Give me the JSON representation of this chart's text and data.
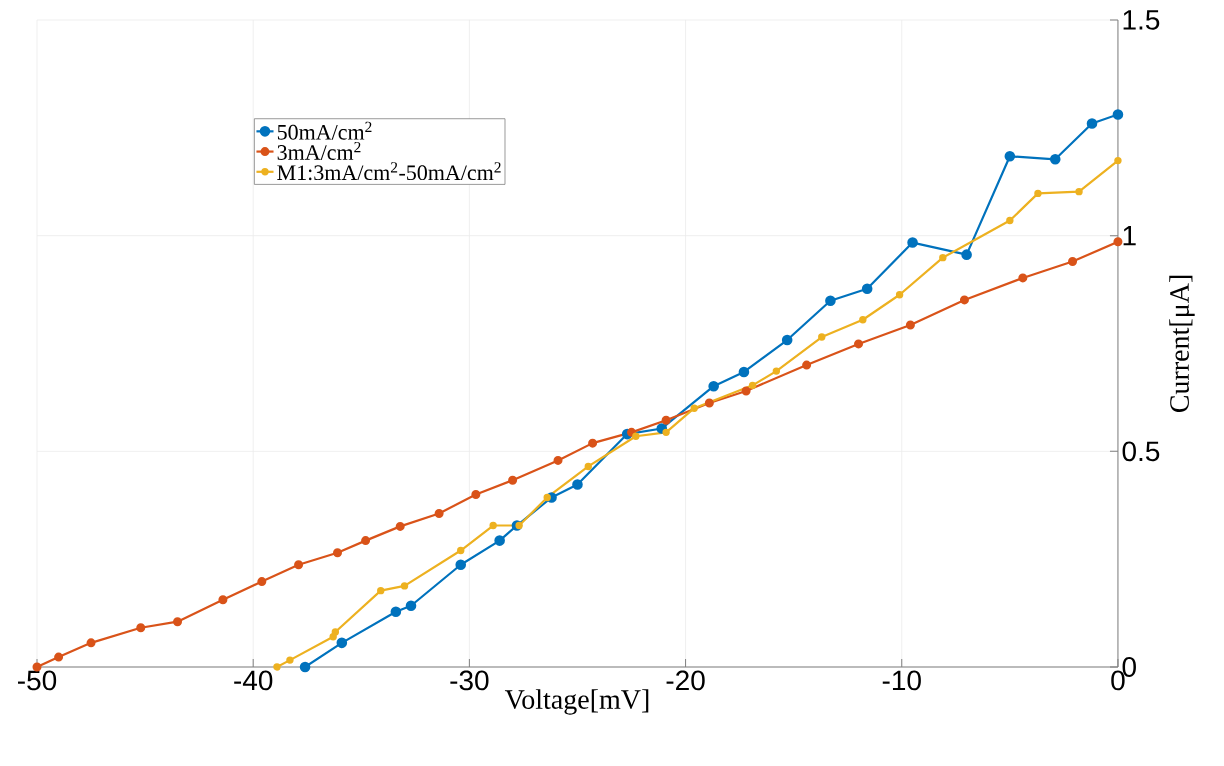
{
  "chart_data": {
    "type": "line",
    "xlabel": "Voltage[mV]",
    "ylabel": "Current[μA]",
    "xlim": [
      -50,
      0
    ],
    "xticks": [
      -50,
      -40,
      -30,
      -20,
      -10,
      0
    ],
    "ylim": [
      0,
      1.5
    ],
    "yticks": [
      0,
      0.5,
      1,
      1.5
    ],
    "grid": true,
    "legend": "top left",
    "marker": "circle",
    "line_style": "solid",
    "series": [
      {
        "name": "50mA/cm$^{2}$",
        "color": "#0072bd",
        "x": [
          -37.6,
          -35.9,
          -33.4,
          -32.7,
          -30.4,
          -28.6,
          -27.8,
          -26.2,
          -25.0,
          -22.7,
          -21.1,
          -18.7,
          -17.3,
          -15.3,
          -13.3,
          -11.6,
          -9.5,
          -7.0,
          -5.0,
          -2.9,
          -1.2,
          0
        ],
        "values": [
          0,
          0.056,
          0.128,
          0.142,
          0.237,
          0.293,
          0.328,
          0.393,
          0.423,
          0.54,
          0.553,
          0.651,
          0.684,
          0.758,
          0.849,
          0.877,
          0.984,
          0.956,
          1.184,
          1.177,
          1.26,
          1.281
        ]
      },
      {
        "name": "3mA/cm$^{2}$",
        "color": "#d95319",
        "x": [
          -50,
          -49.0,
          -47.5,
          -45.2,
          -43.5,
          -41.4,
          -39.6,
          -37.9,
          -36.1,
          -34.8,
          -33.2,
          -31.4,
          -29.7,
          -28.0,
          -25.9,
          -24.3,
          -22.5,
          -20.9,
          -18.9,
          -17.2,
          -14.4,
          -12.0,
          -9.6,
          -7.1,
          -4.4,
          -2.1,
          0
        ],
        "values": [
          0,
          0.023,
          0.056,
          0.091,
          0.105,
          0.156,
          0.198,
          0.237,
          0.265,
          0.293,
          0.326,
          0.356,
          0.4,
          0.433,
          0.479,
          0.519,
          0.544,
          0.572,
          0.612,
          0.64,
          0.7,
          0.749,
          0.793,
          0.851,
          0.902,
          0.94,
          0.986
        ]
      },
      {
        "name": "M1:3mA/cm$^{2}$-50mA/cm$^{2}$",
        "color": "#edb120",
        "x": [
          -38.9,
          -38.3,
          -36.3,
          -36.2,
          -34.1,
          -33.0,
          -30.4,
          -28.9,
          -27.7,
          -26.4,
          -24.5,
          -22.3,
          -20.9,
          -19.6,
          -16.9,
          -15.8,
          -13.7,
          -11.8,
          -10.1,
          -8.1,
          -5.0,
          -3.7,
          -1.8,
          0
        ],
        "values": [
          0,
          0.016,
          0.07,
          0.081,
          0.177,
          0.188,
          0.27,
          0.328,
          0.328,
          0.393,
          0.465,
          0.535,
          0.544,
          0.6,
          0.653,
          0.686,
          0.765,
          0.805,
          0.863,
          0.949,
          1.035,
          1.098,
          1.102,
          1.174
        ]
      }
    ]
  }
}
